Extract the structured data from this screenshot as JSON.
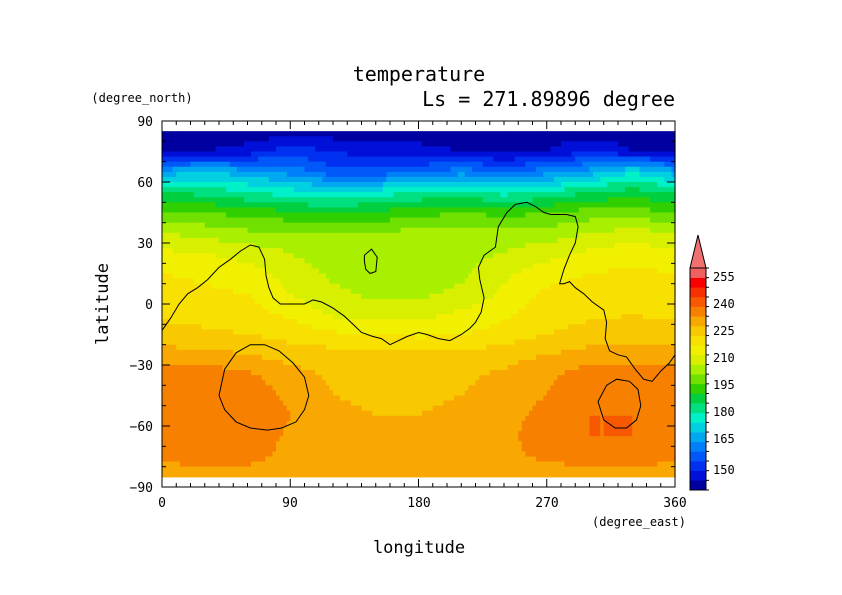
{
  "chart_data": {
    "type": "heatmap",
    "title": "temperature",
    "subtitle": "Ls = 271.89896 degree",
    "xlabel": "longitude",
    "ylabel": "latitude",
    "x_units": "(degree_east)",
    "y_units": "(degree_north)",
    "xlim": [
      0,
      360
    ],
    "ylim": [
      -90,
      90
    ],
    "x_ticks": [
      "0",
      "90",
      "180",
      "270",
      "360"
    ],
    "y_ticks": [
      "90",
      "60",
      "30",
      "0",
      "−30",
      "−60",
      "−90"
    ],
    "colorbar": {
      "labels": [
        "255",
        "240",
        "225",
        "210",
        "195",
        "180",
        "165",
        "150"
      ],
      "levels": [
        145,
        150,
        155,
        160,
        165,
        170,
        175,
        180,
        185,
        190,
        195,
        200,
        205,
        210,
        215,
        220,
        225,
        230,
        235,
        240,
        245,
        250,
        255,
        260
      ],
      "colors": [
        "#0000a0",
        "#0010d8",
        "#0030f0",
        "#0058f8",
        "#0080f8",
        "#00a8f0",
        "#00d0e0",
        "#00f0c8",
        "#00e080",
        "#00d040",
        "#30d000",
        "#70e000",
        "#a8f000",
        "#d8f000",
        "#f0f000",
        "#f8e000",
        "#f8c800",
        "#f8a800",
        "#f88000",
        "#f85800",
        "#f83000",
        "#f80000",
        "#f06060"
      ],
      "overflow_color": "#f07070"
    },
    "field_lat_rows": [
      85,
      75,
      65,
      55,
      45,
      35,
      25,
      15,
      5,
      -5,
      -15,
      -25,
      -35,
      -45,
      -55,
      -65,
      -75,
      -85
    ],
    "field_lon_cols": [
      0,
      30,
      60,
      90,
      120,
      150,
      180,
      210,
      240,
      270,
      300,
      330,
      360
    ],
    "field_values": [
      [
        147,
        147,
        147,
        147,
        147,
        147,
        147,
        147,
        147,
        147,
        147,
        147,
        147
      ],
      [
        150,
        150,
        152,
        158,
        155,
        152,
        152,
        150,
        148,
        150,
        155,
        150,
        150
      ],
      [
        172,
        175,
        172,
        168,
        162,
        162,
        164,
        168,
        165,
        168,
        172,
        180,
        172
      ],
      [
        190,
        188,
        185,
        182,
        180,
        182,
        185,
        186,
        183,
        185,
        190,
        192,
        190
      ],
      [
        200,
        200,
        198,
        196,
        194,
        196,
        198,
        200,
        198,
        200,
        202,
        202,
        200
      ],
      [
        210,
        208,
        206,
        206,
        205,
        205,
        207,
        208,
        208,
        207,
        210,
        212,
        210
      ],
      [
        216,
        215,
        213,
        210,
        207,
        206,
        207,
        208,
        210,
        213,
        216,
        218,
        216
      ],
      [
        220,
        219,
        217,
        213,
        209,
        207,
        208,
        209,
        214,
        218,
        220,
        221,
        220
      ],
      [
        222,
        221,
        220,
        215,
        211,
        209,
        209,
        211,
        216,
        221,
        222,
        223,
        222
      ],
      [
        224,
        223,
        222,
        219,
        214,
        212,
        213,
        216,
        219,
        223,
        224,
        225,
        224
      ],
      [
        227,
        226,
        225,
        223,
        221,
        220,
        219,
        220,
        222,
        225,
        227,
        227,
        227
      ],
      [
        232,
        232,
        230,
        228,
        227,
        227,
        226,
        226,
        228,
        230,
        232,
        232,
        232
      ],
      [
        237,
        238,
        236,
        232,
        229,
        228,
        228,
        229,
        231,
        234,
        238,
        238,
        237
      ],
      [
        238,
        239,
        238,
        234,
        230,
        229,
        229,
        230,
        232,
        235,
        239,
        239,
        238
      ],
      [
        239,
        240,
        239,
        235,
        231,
        230,
        230,
        231,
        233,
        237,
        240,
        240,
        239
      ],
      [
        238,
        240,
        239,
        234,
        232,
        231,
        231,
        232,
        234,
        237,
        240,
        240,
        238
      ],
      [
        236,
        238,
        237,
        233,
        232,
        232,
        232,
        233,
        234,
        236,
        238,
        238,
        236
      ],
      [
        232,
        232,
        232,
        232,
        232,
        232,
        232,
        232,
        232,
        232,
        232,
        232,
        232
      ]
    ],
    "contour_lines": [
      {
        "name": "coastline",
        "points": [
          [
            0,
            -13
          ],
          [
            6,
            -7
          ],
          [
            12,
            0
          ],
          [
            18,
            5
          ],
          [
            25,
            8
          ],
          [
            32,
            12
          ],
          [
            40,
            18
          ],
          [
            48,
            22
          ],
          [
            55,
            26
          ],
          [
            62,
            29
          ],
          [
            68,
            28
          ],
          [
            72,
            22
          ],
          [
            73,
            14
          ],
          [
            75,
            8
          ],
          [
            78,
            3
          ],
          [
            83,
            0
          ],
          [
            92,
            0
          ],
          [
            100,
            0
          ],
          [
            106,
            2
          ],
          [
            112,
            1
          ],
          [
            120,
            -2
          ],
          [
            128,
            -6
          ],
          [
            134,
            -10
          ],
          [
            140,
            -14
          ],
          [
            148,
            -16
          ],
          [
            154,
            -17
          ],
          [
            160,
            -20
          ],
          [
            166,
            -18
          ],
          [
            172,
            -16
          ],
          [
            180,
            -14
          ],
          [
            186,
            -15
          ],
          [
            194,
            -17
          ],
          [
            202,
            -18
          ],
          [
            210,
            -15
          ],
          [
            216,
            -12
          ],
          [
            220,
            -9
          ],
          [
            224,
            -4
          ],
          [
            226,
            3
          ],
          [
            223,
            12
          ],
          [
            222,
            18
          ],
          [
            226,
            24
          ],
          [
            234,
            28
          ],
          [
            236,
            38
          ],
          [
            242,
            45
          ],
          [
            248,
            49
          ],
          [
            256,
            50
          ],
          [
            262,
            48
          ],
          [
            268,
            45
          ],
          [
            273,
            44
          ],
          [
            278,
            44
          ],
          [
            284,
            44
          ],
          [
            290,
            43
          ],
          [
            292,
            38
          ],
          [
            290,
            30
          ],
          [
            286,
            24
          ],
          [
            282,
            17
          ],
          [
            279,
            10
          ],
          [
            282,
            10
          ],
          [
            286,
            11
          ],
          [
            290,
            8
          ],
          [
            296,
            5
          ],
          [
            302,
            1
          ],
          [
            310,
            -3
          ],
          [
            312,
            -9
          ],
          [
            311,
            -17
          ],
          [
            314,
            -23
          ],
          [
            320,
            -25
          ],
          [
            326,
            -26
          ],
          [
            332,
            -32
          ],
          [
            338,
            -37
          ],
          [
            344,
            -38
          ],
          [
            350,
            -33
          ],
          [
            356,
            -29
          ],
          [
            360,
            -25
          ]
        ]
      },
      {
        "name": "crater-north",
        "points": [
          [
            142,
            24
          ],
          [
            147,
            27
          ],
          [
            151,
            23
          ],
          [
            150,
            16
          ],
          [
            146,
            15
          ],
          [
            143,
            17
          ],
          [
            142,
            21
          ],
          [
            142,
            24
          ]
        ]
      },
      {
        "name": "basin-west",
        "points": [
          [
            40,
            -45
          ],
          [
            44,
            -32
          ],
          [
            52,
            -24
          ],
          [
            62,
            -20
          ],
          [
            72,
            -20
          ],
          [
            82,
            -23
          ],
          [
            92,
            -29
          ],
          [
            100,
            -36
          ],
          [
            103,
            -45
          ],
          [
            100,
            -52
          ],
          [
            94,
            -58
          ],
          [
            84,
            -61
          ],
          [
            74,
            -62
          ],
          [
            62,
            -61
          ],
          [
            52,
            -58
          ],
          [
            44,
            -52
          ],
          [
            40,
            -45
          ]
        ]
      },
      {
        "name": "basin-east",
        "points": [
          [
            306,
            -48
          ],
          [
            312,
            -40
          ],
          [
            319,
            -37
          ],
          [
            328,
            -38
          ],
          [
            334,
            -42
          ],
          [
            336,
            -50
          ],
          [
            333,
            -57
          ],
          [
            326,
            -61
          ],
          [
            318,
            -61
          ],
          [
            310,
            -57
          ],
          [
            306,
            -48
          ]
        ]
      }
    ]
  }
}
